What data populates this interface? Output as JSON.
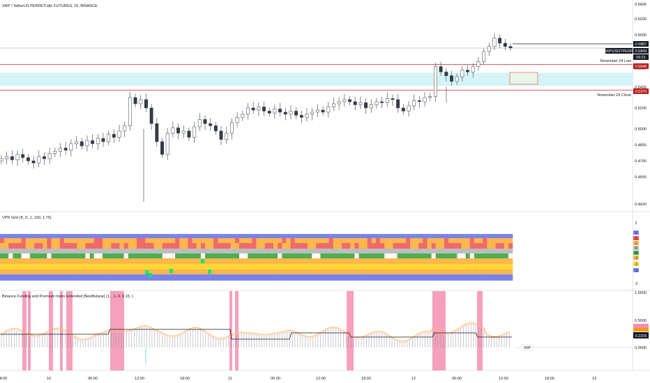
{
  "header": {
    "symbol_title": "XRP / TetherUS PERPETUAL FUTURES, 15, BINANCE"
  },
  "price_axis": {
    "ticks": [
      "0.6400",
      "0.6200",
      "0.6000",
      "0.5800",
      "0.5600",
      "0.5400",
      "0.5200",
      "0.5000",
      "0.4850",
      "0.4700",
      "0.4550",
      "0.4420"
    ],
    "badges": {
      "top": "0.5887",
      "symbol": "XRPUSDTPERP",
      "current": "0.5843",
      "countdown": "09:21",
      "nov24": "0.5646",
      "nov26": "0.5370"
    }
  },
  "annotations": {
    "nov24_label": "November 24 Low",
    "nov26_label": "November 26 Close"
  },
  "time_axis": [
    "8:00",
    "10",
    "06:00",
    "12:00",
    "18:00",
    "11",
    "06:00",
    "12:00",
    "18:00",
    "12",
    "06:00",
    "12:00",
    "18:00",
    "13"
  ],
  "vpr_panel": {
    "title": "VPR Grid (8, D, 1, 100, 1.75)",
    "scale": [
      "2",
      "1",
      "1",
      "1",
      "0",
      "-0",
      "-1",
      "-1",
      "-1",
      "-2"
    ]
  },
  "funding_panel": {
    "title": "Binance Funding and Premium Index Extended [NeoButane] (1, , 1, 0, 0.15, )",
    "ticks": [
      "1.0000",
      "0.5000",
      "0.0000"
    ],
    "badge_current": "0.2206",
    "xrp_label": "XRP"
  },
  "colors": {
    "up": "#26a69a",
    "down": "#ef5350",
    "candle": "#363a45",
    "zone": "#b2ebf2",
    "pink": "#f48fb1",
    "blue": "#7b83eb",
    "orange": "#ffb74d",
    "yellow": "#fdd835",
    "green": "#4caf50",
    "gray": "#bdbdbd",
    "red": "#ef6b6b"
  },
  "chart_data": {
    "type": "candlestick",
    "symbol": "XRPUSDTPERP",
    "interval": "15",
    "exchange": "BINANCE",
    "closes": [
      0.472,
      0.474,
      0.471,
      0.476,
      0.473,
      0.47,
      0.468,
      0.474,
      0.472,
      0.477,
      0.479,
      0.482,
      0.48,
      0.486,
      0.488,
      0.484,
      0.489,
      0.486,
      0.491,
      0.488,
      0.495,
      0.492,
      0.498,
      0.503,
      0.53,
      0.524,
      0.528,
      0.52,
      0.505,
      0.488,
      0.476,
      0.496,
      0.501,
      0.496,
      0.498,
      0.492,
      0.502,
      0.509,
      0.505,
      0.503,
      0.498,
      0.49,
      0.496,
      0.506,
      0.511,
      0.514,
      0.52,
      0.518,
      0.521,
      0.517,
      0.515,
      0.519,
      0.516,
      0.514,
      0.517,
      0.513,
      0.511,
      0.514,
      0.516,
      0.518,
      0.516,
      0.521,
      0.524,
      0.526,
      0.528,
      0.526,
      0.523,
      0.525,
      0.52,
      0.523,
      0.526,
      0.525,
      0.529,
      0.528,
      0.52,
      0.517,
      0.522,
      0.527,
      0.526,
      0.53,
      0.531,
      0.562,
      0.556,
      0.552,
      0.546,
      0.551,
      0.558,
      0.556,
      0.562,
      0.568,
      0.58,
      0.586,
      0.596,
      0.59,
      0.586,
      0.5843
    ],
    "levels": [
      {
        "name": "November 24 Low",
        "price": 0.5646
      },
      {
        "name": "November 26 Close",
        "price": 0.537
      }
    ],
    "ylim": [
      0.442,
      0.64
    ]
  }
}
